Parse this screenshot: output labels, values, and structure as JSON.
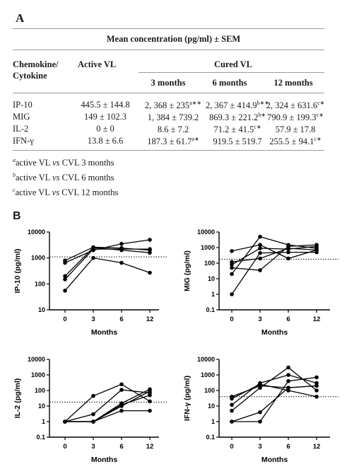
{
  "panel_a": {
    "letter": "A",
    "header_main": "Mean concentration (pg/ml) ± SEM",
    "col_chemo_line1": "Chemokine/",
    "col_chemo_line2": "Cytokine",
    "col_active": "Active VL",
    "col_cured": "Cured VL",
    "col_3m": "3 months",
    "col_6m": "6 months",
    "col_12m": "12 months",
    "rows": [
      {
        "name": "IP-10",
        "active": "445.5 ± 144.8",
        "m3": "2, 368 ± 235",
        "m3_sup": "a∗∗",
        "m6": "2, 367 ± 414.9",
        "m6_sup": "b∗∗",
        "m12": "2, 324 ± 631.6",
        "m12_sup": "c∗"
      },
      {
        "name": "MIG",
        "active": "149 ± 102.3",
        "m3": "1, 384 ± 739.2",
        "m3_sup": "",
        "m6": "869.3 ± 221.2",
        "m6_sup": "b∗",
        "m12": "790.9 ± 199.3",
        "m12_sup": "c∗"
      },
      {
        "name": "IL-2",
        "active": "0 ± 0",
        "m3": "8.6 ± 7.2",
        "m3_sup": "",
        "m6": "71.2 ± 41.5",
        "m6_sup": "c∗",
        "m12": "57.9 ± 17.8",
        "m12_sup": ""
      },
      {
        "name": "IFN-γ",
        "active": "13.8 ± 6.6",
        "m3": "187.3 ± 61.7",
        "m3_sup": "a∗",
        "m6": "919.5 ± 519.7",
        "m6_sup": "",
        "m12": "255.5 ± 94.1",
        "m12_sup": "c∗"
      }
    ],
    "footnotes": [
      {
        "sup": "a",
        "pre": "active VL ",
        "vs": "vs",
        "post": " CVL 3 months"
      },
      {
        "sup": "b",
        "pre": "active VL ",
        "vs": "vs",
        "post": " CVL 6 months"
      },
      {
        "sup": "c",
        "pre": "active VL ",
        "vs": "vs",
        "post": " CVL 12 months"
      }
    ]
  },
  "panel_b": {
    "letter": "B"
  },
  "chart_data": [
    {
      "type": "line",
      "ylabel": "IP-10 (pg/ml)",
      "xlabel": "Months",
      "x": [
        0,
        3,
        6,
        12
      ],
      "xticks": [
        "0",
        "3",
        "6",
        "12"
      ],
      "yscale": "log",
      "ylim": [
        10,
        10000
      ],
      "yticks": [
        "10",
        "100",
        "1000",
        "10000"
      ],
      "reference_line": 1100,
      "series": [
        {
          "values": [
            55,
            1000,
            650,
            270
          ]
        },
        {
          "values": [
            150,
            2200,
            2200,
            2200
          ]
        },
        {
          "values": [
            200,
            2500,
            2000,
            1600
          ]
        },
        {
          "values": [
            650,
            2000,
            3500,
            5000
          ]
        },
        {
          "values": [
            800,
            2600,
            2400,
            2000
          ]
        }
      ]
    },
    {
      "type": "line",
      "ylabel": "MIG (pg/ml)",
      "xlabel": "Months",
      "x": [
        0,
        3,
        6,
        12
      ],
      "xticks": [
        "0",
        "3",
        "6",
        "12"
      ],
      "yscale": "log",
      "ylim": [
        0.1,
        10000
      ],
      "yticks": [
        "0.1",
        "1",
        "10",
        "100",
        "1000",
        "10000"
      ],
      "reference_line": 180,
      "series": [
        {
          "values": [
            1,
            450,
            500,
            500
          ]
        },
        {
          "values": [
            20,
            5000,
            1500,
            900
          ]
        },
        {
          "values": [
            50,
            35,
            1200,
            1500
          ]
        },
        {
          "values": [
            80,
            900,
            800,
            1200
          ]
        },
        {
          "values": [
            600,
            1500,
            200,
            700
          ]
        },
        {
          "values": [
            120,
            200,
            900,
            700
          ]
        }
      ]
    },
    {
      "type": "line",
      "ylabel": "IL-2 (pg/ml)",
      "xlabel": "Months",
      "x": [
        0,
        3,
        6,
        12
      ],
      "xticks": [
        "0",
        "3",
        "6",
        "12"
      ],
      "yscale": "log",
      "ylim": [
        0.1,
        10000
      ],
      "yticks": [
        "0.1",
        "1",
        "10",
        "100",
        "1000",
        "10000"
      ],
      "reference_line": 18,
      "series": [
        {
          "values": [
            1,
            45,
            250,
            20
          ]
        },
        {
          "values": [
            1,
            3,
            110,
            70
          ]
        },
        {
          "values": [
            1,
            1,
            15,
            120
          ]
        },
        {
          "values": [
            1,
            1,
            12,
            50
          ]
        },
        {
          "values": [
            1,
            1,
            5,
            5
          ]
        },
        {
          "values": [
            1,
            1,
            10,
            90
          ]
        }
      ]
    },
    {
      "type": "line",
      "ylabel": "IFN-γ (pg/ml)",
      "xlabel": "Months",
      "x": [
        0,
        3,
        6,
        12
      ],
      "xticks": [
        "0",
        "3",
        "6",
        "12"
      ],
      "yscale": "log",
      "ylim": [
        0.1,
        10000
      ],
      "yticks": [
        "0.1",
        "1",
        "10",
        "100",
        "1000",
        "10000"
      ],
      "reference_line": 40,
      "series": [
        {
          "values": [
            1,
            1,
            400,
            700
          ]
        },
        {
          "values": [
            1,
            4,
            150,
            200
          ]
        },
        {
          "values": [
            5,
            150,
            3000,
            100
          ]
        },
        {
          "values": [
            12,
            300,
            1000,
            300
          ]
        },
        {
          "values": [
            30,
            250,
            100,
            40
          ]
        },
        {
          "values": [
            40,
            200,
            150,
            200
          ]
        }
      ]
    }
  ]
}
